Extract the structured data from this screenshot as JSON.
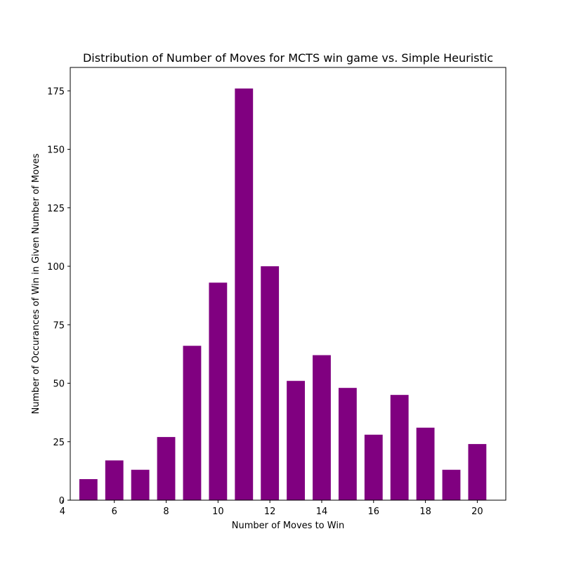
{
  "chart_data": {
    "type": "bar",
    "title": "Distribution of Number of Moves for MCTS win game vs. Simple Heuristic",
    "xlabel": "Number of Moves to Win",
    "ylabel": "Number of Occurances of Win in Given Number of Moves",
    "x": [
      5,
      6,
      7,
      8,
      9,
      10,
      11,
      12,
      13,
      14,
      15,
      16,
      17,
      18,
      19,
      20
    ],
    "values": [
      9,
      17,
      13,
      27,
      66,
      93,
      176,
      100,
      51,
      62,
      48,
      28,
      45,
      31,
      13,
      24
    ],
    "bar_width": 0.7,
    "xlim": [
      4.3,
      21.1
    ],
    "ylim": [
      0,
      185
    ],
    "xticks": [
      4,
      6,
      8,
      10,
      12,
      14,
      16,
      18,
      20
    ],
    "yticks": [
      0,
      25,
      50,
      75,
      100,
      125,
      150,
      175
    ],
    "color": "#800080",
    "grid": false,
    "legend": false
  }
}
